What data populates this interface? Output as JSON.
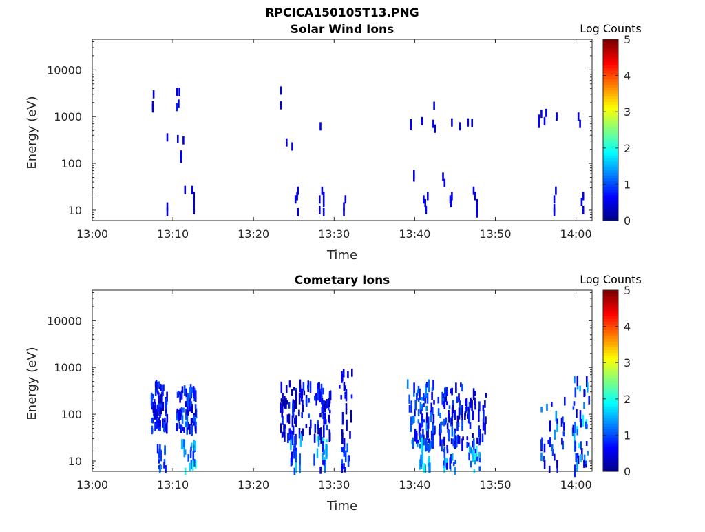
{
  "figure_title": "RPCICA150105T13.PNG",
  "colors": {
    "axis": "#262626",
    "colormap": [
      "#00008f",
      "#0000ff",
      "#0080ff",
      "#00ffff",
      "#80ff80",
      "#ffff00",
      "#ff8000",
      "#ff0000",
      "#800000"
    ]
  },
  "chart_data": [
    {
      "type": "heatmap",
      "title": "Solar Wind Ions",
      "xlabel": "Time",
      "ylabel": "Energy (eV)",
      "x_ticks": [
        "13:00",
        "13:10",
        "13:20",
        "13:30",
        "13:40",
        "13:50",
        "14:00"
      ],
      "y_ticks": [
        "10",
        "100",
        "1000",
        "10000"
      ],
      "y_scale": "log",
      "ylim": [
        6,
        45000
      ],
      "xlim_minutes": [
        0,
        62
      ],
      "colorbar": {
        "label": "Log Counts",
        "ticks": [
          "0",
          "1",
          "2",
          "3",
          "4",
          "5"
        ],
        "range": [
          0,
          5
        ]
      },
      "cells": [
        [
          7.4,
          1500,
          0.4
        ],
        [
          7.4,
          1750,
          0.4
        ],
        [
          7.5,
          3000,
          0.4
        ],
        [
          10.4,
          1600,
          0.8
        ],
        [
          10.6,
          1900,
          0.5
        ],
        [
          10.4,
          3300,
          0.5
        ],
        [
          10.7,
          3400,
          0.6
        ],
        [
          9.2,
          360,
          0.5
        ],
        [
          10.5,
          330,
          0.5
        ],
        [
          11.2,
          310,
          0.5
        ],
        [
          10.9,
          155,
          0.5
        ],
        [
          10.9,
          125,
          0.5
        ],
        [
          23.3,
          3600,
          0.5
        ],
        [
          23.3,
          1750,
          0.5
        ],
        [
          24.0,
          280,
          0.5
        ],
        [
          24.7,
          230,
          0.5
        ],
        [
          28.2,
          620,
          0.5
        ],
        [
          39.4,
          720,
          0.5
        ],
        [
          39.4,
          630,
          0.5
        ],
        [
          40.8,
          800,
          0.5
        ],
        [
          42.2,
          700,
          0.5
        ],
        [
          42.4,
          550,
          0.5
        ],
        [
          42.3,
          1700,
          0.5
        ],
        [
          44.5,
          750,
          0.5
        ],
        [
          45.5,
          620,
          0.5
        ],
        [
          46.5,
          750,
          0.5
        ],
        [
          47.0,
          730,
          0.5
        ],
        [
          55.3,
          900,
          0.6
        ],
        [
          55.3,
          700,
          0.6
        ],
        [
          55.6,
          1150,
          0.6
        ],
        [
          56.0,
          800,
          0.6
        ],
        [
          56.2,
          1200,
          0.6
        ],
        [
          57.5,
          1000,
          0.5
        ],
        [
          60.2,
          1000,
          0.5
        ],
        [
          60.4,
          700,
          0.5
        ],
        [
          39.8,
          60,
          0.5
        ],
        [
          39.8,
          50,
          0.5
        ],
        [
          43.4,
          52,
          0.5
        ],
        [
          43.6,
          38,
          0.5
        ],
        [
          9.2,
          12,
          0.4
        ],
        [
          9.2,
          9,
          0.4
        ],
        [
          11.4,
          27,
          0.5
        ],
        [
          12.3,
          27,
          0.5
        ],
        [
          12.5,
          20,
          0.4
        ],
        [
          12.5,
          14,
          0.4
        ],
        [
          12.5,
          10,
          0.4
        ],
        [
          25.1,
          17,
          0.4
        ],
        [
          25.3,
          20,
          0.4
        ],
        [
          25.4,
          26,
          0.4
        ],
        [
          25.4,
          9,
          0.4
        ],
        [
          28.1,
          17,
          0.4
        ],
        [
          28.1,
          10,
          0.4
        ],
        [
          28.4,
          26,
          0.5
        ],
        [
          28.6,
          20,
          0.5
        ],
        [
          28.6,
          14,
          0.5
        ],
        [
          28.6,
          9,
          0.5
        ],
        [
          31.3,
          17,
          0.4
        ],
        [
          31.1,
          12,
          0.4
        ],
        [
          31.1,
          9,
          0.4
        ],
        [
          41.0,
          17,
          0.6
        ],
        [
          41.2,
          14,
          0.6
        ],
        [
          41.3,
          10,
          0.5
        ],
        [
          41.5,
          20,
          0.5
        ],
        [
          44.3,
          17,
          0.6
        ],
        [
          44.5,
          20,
          0.5
        ],
        [
          44.4,
          14,
          0.5
        ],
        [
          47.2,
          26,
          0.5
        ],
        [
          47.4,
          20,
          0.5
        ],
        [
          47.6,
          14,
          0.5
        ],
        [
          47.6,
          10,
          0.5
        ],
        [
          47.6,
          8.5,
          0.5
        ],
        [
          57.2,
          17,
          0.5
        ],
        [
          57.4,
          26,
          0.5
        ],
        [
          57.2,
          11,
          0.5
        ],
        [
          57.2,
          9,
          0.5
        ],
        [
          60.8,
          20,
          0.5
        ],
        [
          60.8,
          10,
          0.5
        ],
        [
          60.6,
          15,
          0.5
        ]
      ]
    },
    {
      "type": "heatmap",
      "title": "Cometary Ions",
      "xlabel": "Time",
      "ylabel": "Energy (eV)",
      "x_ticks": [
        "13:00",
        "13:10",
        "13:20",
        "13:30",
        "13:40",
        "13:50",
        "14:00"
      ],
      "y_ticks": [
        "10",
        "100",
        "1000",
        "10000"
      ],
      "y_scale": "log",
      "ylim": [
        6,
        45000
      ],
      "xlim_minutes": [
        0,
        62
      ],
      "colorbar": {
        "label": "Log Counts",
        "ticks": [
          "0",
          "1",
          "2",
          "3",
          "4",
          "5"
        ],
        "range": [
          0,
          5
        ]
      },
      "clusters": [
        {
          "t": [
            7.2,
            9.2
          ],
          "e": [
            45,
            450
          ],
          "z": [
            0.2,
            1.0
          ],
          "n": 70,
          "seed": 11
        },
        {
          "t": [
            10.3,
            12.8
          ],
          "e": [
            45,
            350
          ],
          "z": [
            0.2,
            1.2
          ],
          "n": 75,
          "seed": 13
        },
        {
          "t": [
            8.0,
            9.2
          ],
          "e": [
            6,
            25
          ],
          "z": [
            0.6,
            1.4
          ],
          "n": 16,
          "seed": 17
        },
        {
          "t": [
            11.0,
            12.8
          ],
          "e": [
            6,
            25
          ],
          "z": [
            0.8,
            2.2
          ],
          "n": 20,
          "seed": 19
        },
        {
          "t": [
            23.2,
            27.0
          ],
          "e": [
            30,
            450
          ],
          "z": [
            0.1,
            1.0
          ],
          "n": 70,
          "seed": 23
        },
        {
          "t": [
            27.3,
            29.5
          ],
          "e": [
            30,
            450
          ],
          "z": [
            0.1,
            1.0
          ],
          "n": 45,
          "seed": 29
        },
        {
          "t": [
            30.5,
            32.2
          ],
          "e": [
            22,
            800
          ],
          "z": [
            0.1,
            0.8
          ],
          "n": 20,
          "seed": 31
        },
        {
          "t": [
            24.5,
            26.0
          ],
          "e": [
            6,
            30
          ],
          "z": [
            0.5,
            2.0
          ],
          "n": 22,
          "seed": 37
        },
        {
          "t": [
            27.4,
            29.0
          ],
          "e": [
            6,
            30
          ],
          "z": [
            0.5,
            2.5
          ],
          "n": 20,
          "seed": 41
        },
        {
          "t": [
            30.8,
            32.0
          ],
          "e": [
            6,
            25
          ],
          "z": [
            0.5,
            1.2
          ],
          "n": 14,
          "seed": 43
        },
        {
          "t": [
            39.0,
            42.5
          ],
          "e": [
            20,
            450
          ],
          "z": [
            0.3,
            1.4
          ],
          "n": 90,
          "seed": 47
        },
        {
          "t": [
            42.8,
            45.8
          ],
          "e": [
            20,
            450
          ],
          "z": [
            0.2,
            1.2
          ],
          "n": 70,
          "seed": 53
        },
        {
          "t": [
            45.8,
            48.8
          ],
          "e": [
            20,
            300
          ],
          "z": [
            0.1,
            1.0
          ],
          "n": 40,
          "seed": 59
        },
        {
          "t": [
            40.5,
            41.8
          ],
          "e": [
            6,
            25
          ],
          "z": [
            0.8,
            2.0
          ],
          "n": 18,
          "seed": 61
        },
        {
          "t": [
            43.5,
            45.0
          ],
          "e": [
            6,
            25
          ],
          "z": [
            0.6,
            1.8
          ],
          "n": 18,
          "seed": 67
        },
        {
          "t": [
            46.5,
            48.0
          ],
          "e": [
            6,
            25
          ],
          "z": [
            0.7,
            1.9
          ],
          "n": 18,
          "seed": 71
        },
        {
          "t": [
            55.5,
            58.5
          ],
          "e": [
            6,
            200
          ],
          "z": [
            0.2,
            1.5
          ],
          "n": 30,
          "seed": 73
        },
        {
          "t": [
            59.5,
            61.6
          ],
          "e": [
            6,
            550
          ],
          "z": [
            0.2,
            1.9
          ],
          "n": 45,
          "seed": 79
        }
      ]
    }
  ]
}
